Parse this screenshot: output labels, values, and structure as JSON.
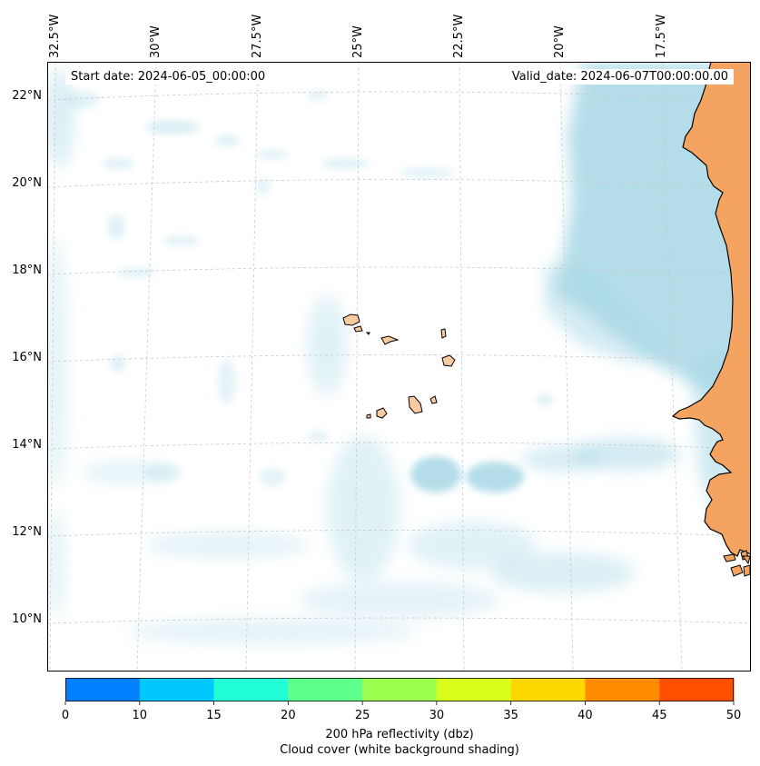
{
  "map": {
    "lon_labels": [
      "32.5°W",
      "30°W",
      "27.5°W",
      "25°W",
      "22.5°W",
      "20°W",
      "17.5°W"
    ],
    "lat_labels": [
      "22°N",
      "20°N",
      "18°N",
      "16°N",
      "14°N",
      "12°N",
      "10°N"
    ],
    "start_date": "Start date: 2024-06-05_00:00:00",
    "valid_date": "Valid_date: 2024-06-07T00:00:00.00",
    "islands": [
      "Santo Antão",
      "São Vicente",
      "Santa Luzia",
      "São Nicolau",
      "Sal",
      "Boa Vista",
      "Maio",
      "Santiago",
      "Fogo",
      "Brava"
    ]
  },
  "colorbar": {
    "ticks": [
      "0",
      "10",
      "15",
      "20",
      "25",
      "30",
      "35",
      "40",
      "45",
      "50"
    ],
    "colors": [
      "#0080ff",
      "#00c8ff",
      "#22ffd8",
      "#5fff8c",
      "#9cff50",
      "#d8ff1a",
      "#ffd700",
      "#ff8c00",
      "#ff4f00"
    ],
    "label_line1": "200 hPa reflectivity (dbz)",
    "label_line2": "Cloud cover (white background shading)"
  },
  "style": {
    "land_color": "#f4a460",
    "island_color": "#f7caa0",
    "cloud_color": "#a8d8e6"
  }
}
